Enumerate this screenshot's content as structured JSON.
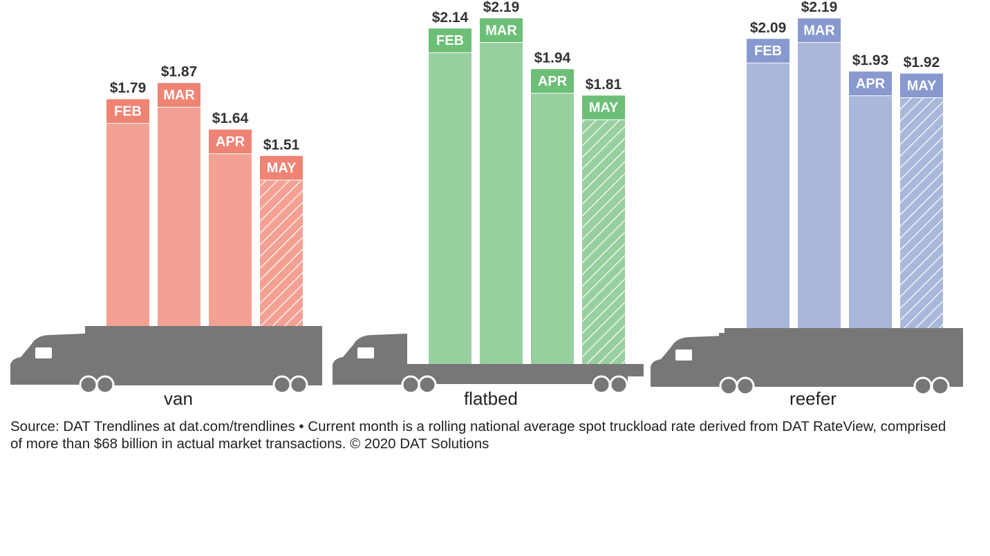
{
  "chart_data": [
    {
      "type": "bar",
      "xlabel": "van",
      "categories": [
        "FEB",
        "MAR",
        "APR",
        "MAY"
      ],
      "values": [
        1.79,
        1.87,
        1.64,
        1.51
      ],
      "value_labels": [
        "$1.79",
        "$1.87",
        "$1.64",
        "$1.51"
      ],
      "color": "#f4a193",
      "band_color": "#ef8374",
      "hatched": [
        false,
        false,
        false,
        true
      ],
      "ylim": [
        0.67,
        2.28
      ]
    },
    {
      "type": "bar",
      "xlabel": "flatbed",
      "categories": [
        "FEB",
        "MAR",
        "APR",
        "MAY"
      ],
      "values": [
        2.14,
        2.19,
        1.94,
        1.81
      ],
      "value_labels": [
        "$2.14",
        "$2.19",
        "$1.94",
        "$1.81"
      ],
      "color": "#98cf9f",
      "band_color": "#6dbf77",
      "hatched": [
        false,
        false,
        false,
        true
      ],
      "ylim": [
        0.49,
        2.28
      ]
    },
    {
      "type": "bar",
      "xlabel": "reefer",
      "categories": [
        "FEB",
        "MAR",
        "APR",
        "MAY"
      ],
      "values": [
        2.09,
        2.19,
        1.93,
        1.92
      ],
      "value_labels": [
        "$2.09",
        "$2.19",
        "$1.93",
        "$1.92"
      ],
      "color": "#a9b7da",
      "band_color": "#8799cf",
      "hatched": [
        false,
        false,
        false,
        true
      ],
      "ylim": [
        0.675,
        2.28
      ]
    }
  ],
  "source": "Source: DAT Trendlines at dat.com/trendlines • Current month is a rolling national average spot truckload rate derived from DAT RateView, comprised of more than $68 billion in actual market transactions. © 2020 DAT Solutions"
}
